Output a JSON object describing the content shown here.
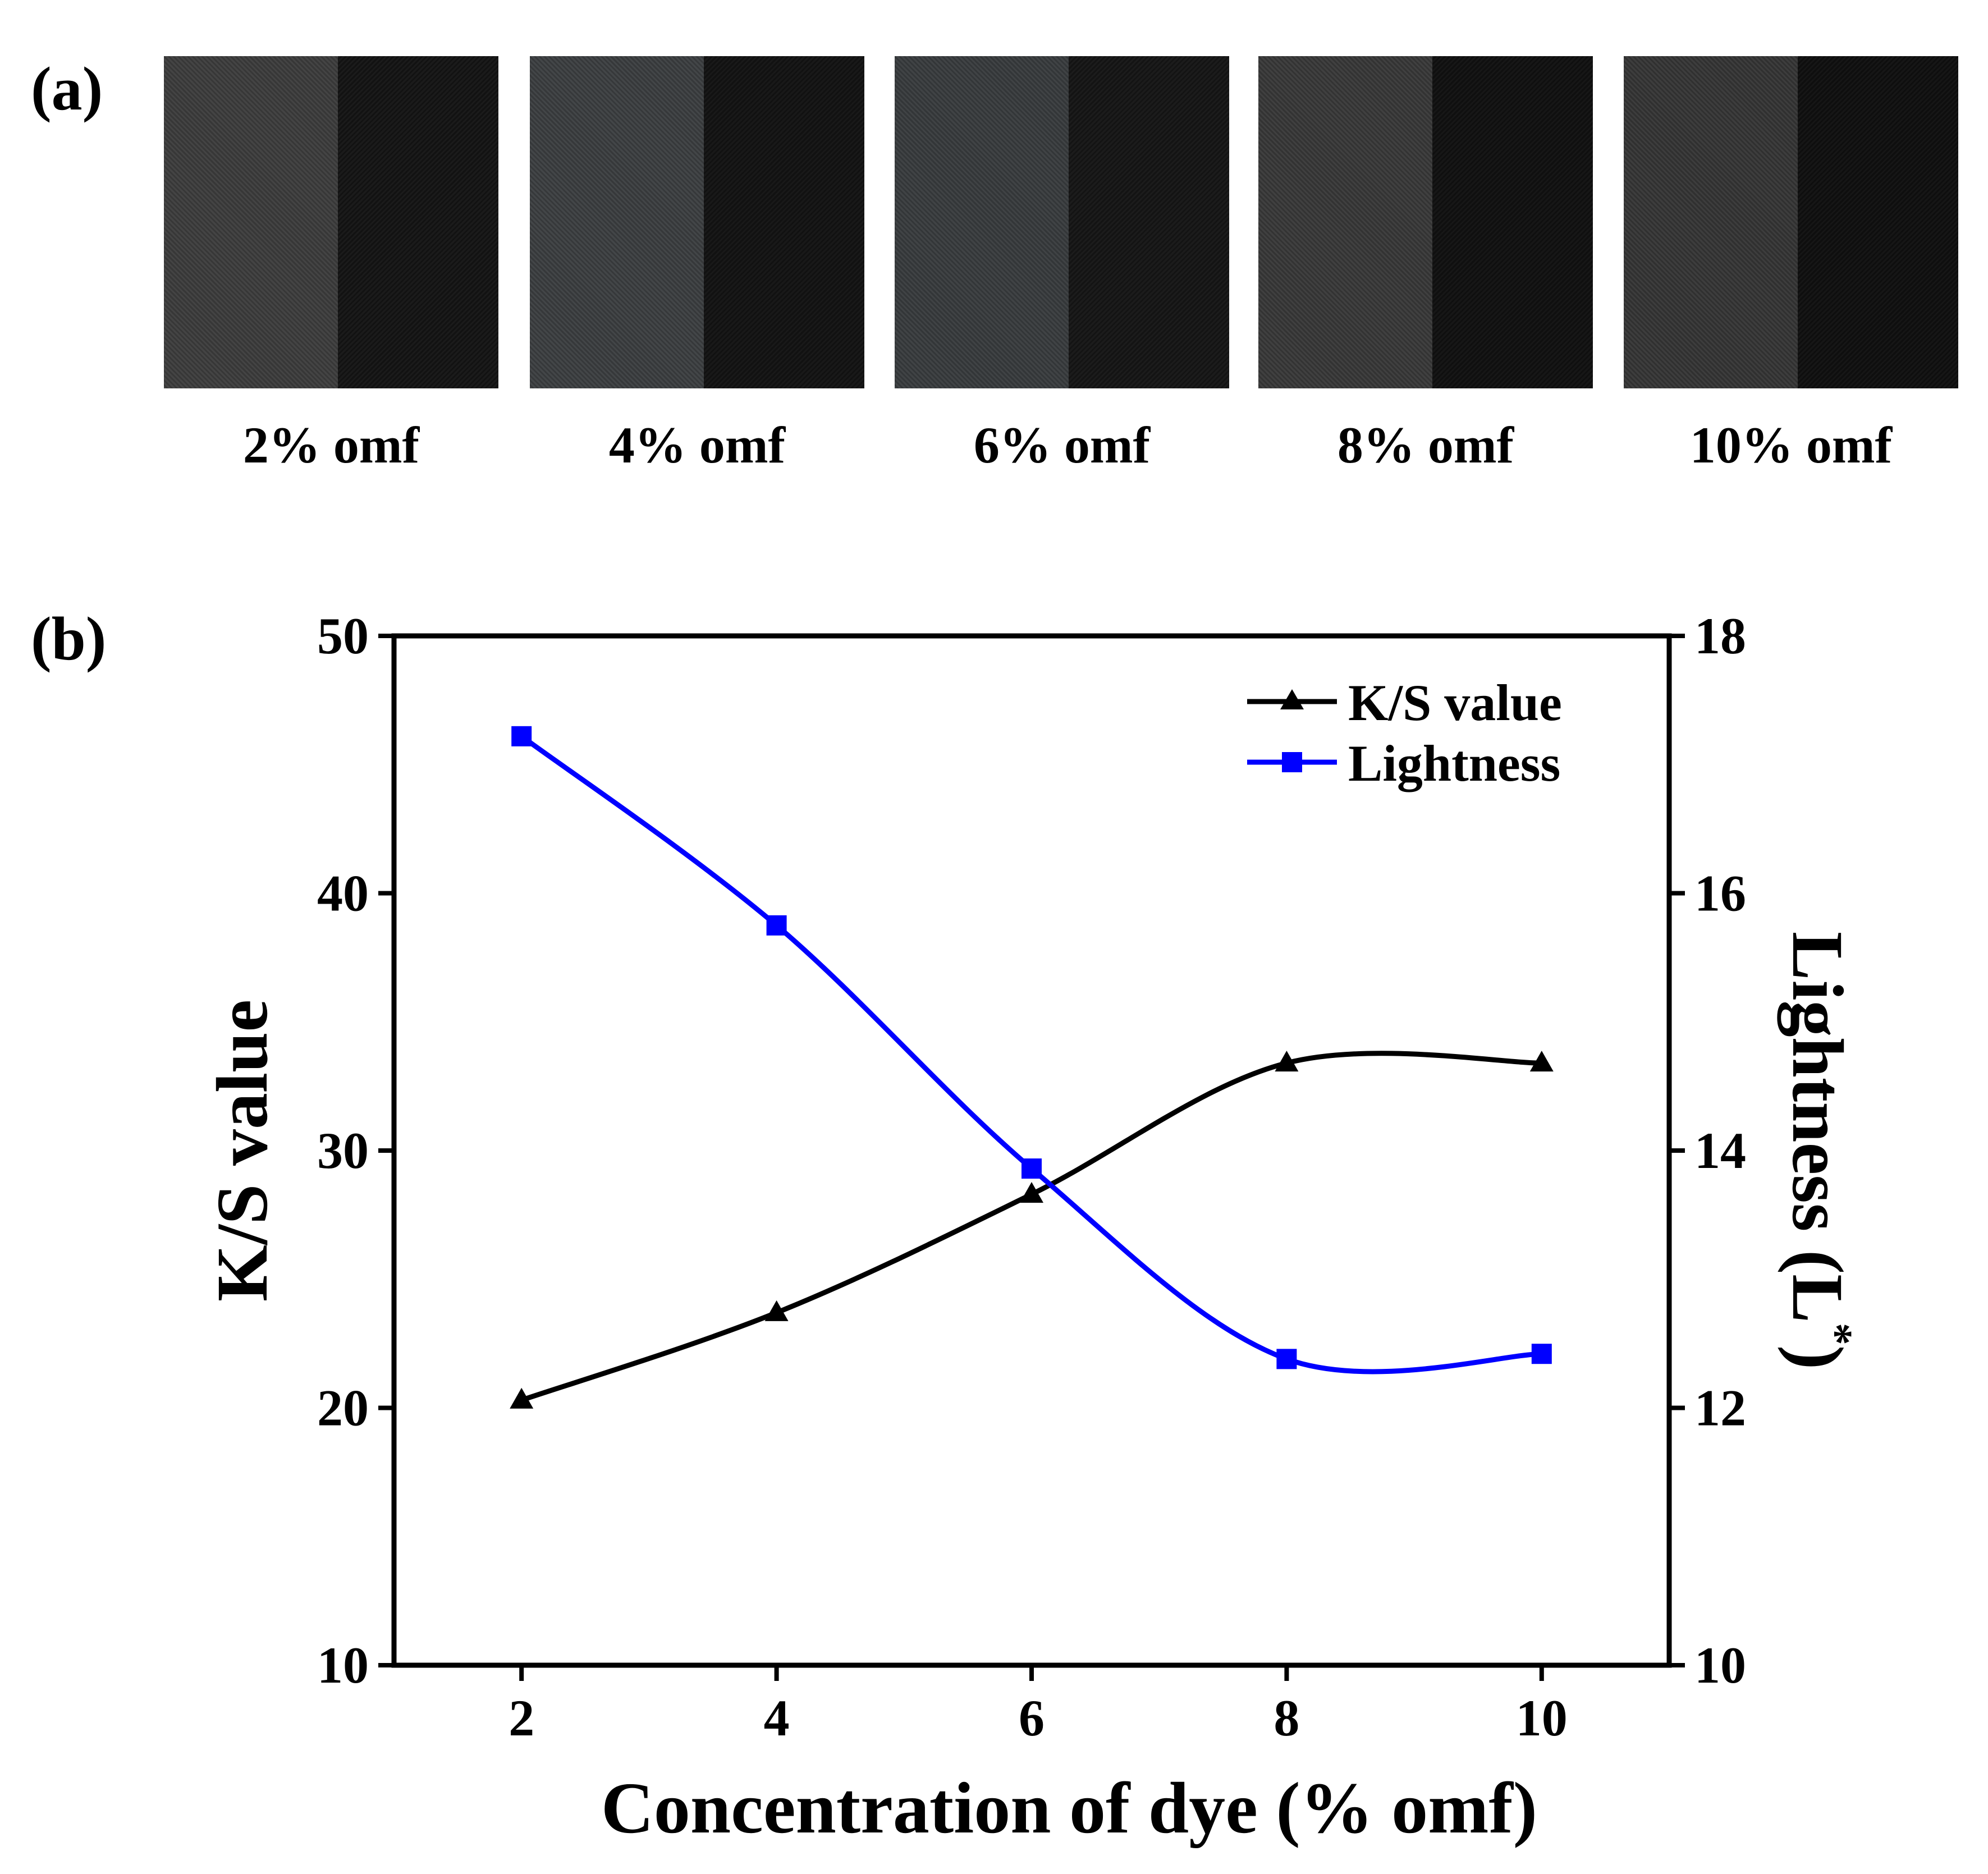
{
  "panel_a": {
    "label": "(a)",
    "swatches": [
      {
        "label": "2% omf",
        "undyed_color": "#3a3a3a",
        "dyed_color": "#141414"
      },
      {
        "label": "4% omf",
        "undyed_color": "#393c3e",
        "dyed_color": "#121212"
      },
      {
        "label": "6% omf",
        "undyed_color": "#36393b",
        "dyed_color": "#151515"
      },
      {
        "label": "8% omf",
        "undyed_color": "#363636",
        "dyed_color": "#101010"
      },
      {
        "label": "10% omf",
        "undyed_color": "#333333",
        "dyed_color": "#0f0f0f"
      }
    ]
  },
  "panel_b": {
    "label": "(b)"
  },
  "chart_data": {
    "type": "line",
    "title": "",
    "xlabel": "Concentration of dye (% omf)",
    "ylabel": "K/S value",
    "y2label": "Lightness (L*)",
    "y2label_main": "Lightness (L",
    "y2label_sup": "*",
    "y2label_close": ")",
    "x": [
      2,
      4,
      6,
      8,
      10
    ],
    "xlim": [
      1,
      11
    ],
    "ylim": [
      10,
      50
    ],
    "y2lim": [
      10,
      18
    ],
    "xticks": [
      "2",
      "4",
      "6",
      "8",
      "10"
    ],
    "yticks": [
      "10",
      "20",
      "30",
      "40",
      "50"
    ],
    "y2ticks": [
      "10",
      "12",
      "14",
      "16",
      "18"
    ],
    "legend_position": "top-right",
    "series": [
      {
        "name": "K/S value",
        "axis": "left",
        "marker": "triangle",
        "color": "#000000",
        "values": [
          20.3,
          23.7,
          28.3,
          33.4,
          33.4
        ]
      },
      {
        "name": "Lightness",
        "axis": "right",
        "marker": "square",
        "color": "#0000ff",
        "values": [
          17.22,
          15.75,
          13.86,
          12.38,
          12.42
        ]
      }
    ]
  }
}
